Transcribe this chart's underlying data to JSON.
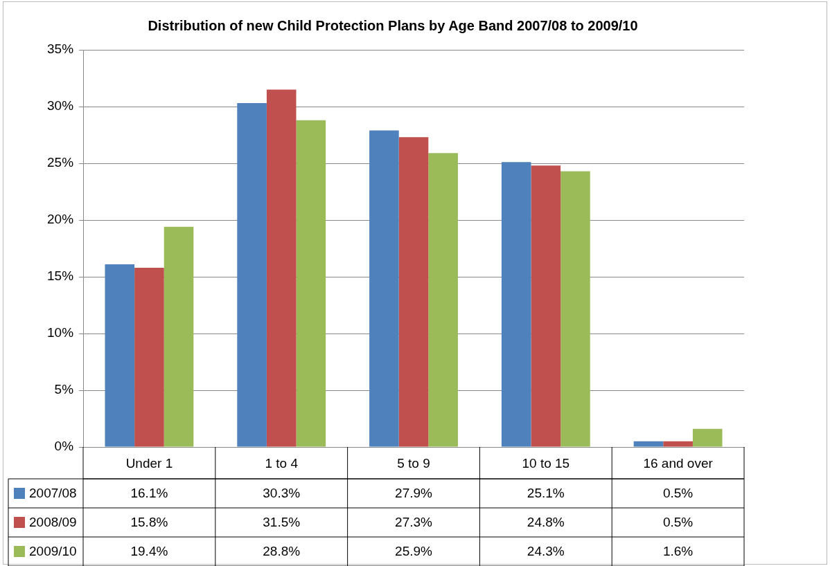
{
  "chart_data": {
    "type": "bar",
    "title": "Distribution of new Child Protection Plans by Age Band 2007/08 to 2009/10",
    "categories": [
      "Under 1",
      "1 to 4",
      "5 to 9",
      "10 to 15",
      "16 and over"
    ],
    "series": [
      {
        "name": "2007/08",
        "color": "#4f81bd",
        "values": [
          16.1,
          30.3,
          27.9,
          25.1,
          0.5
        ],
        "value_labels": [
          "16.1%",
          "30.3%",
          "27.9%",
          "25.1%",
          "0.5%"
        ]
      },
      {
        "name": "2008/09",
        "color": "#c0504d",
        "values": [
          15.8,
          31.5,
          27.3,
          24.8,
          0.5
        ],
        "value_labels": [
          "15.8%",
          "31.5%",
          "27.3%",
          "24.8%",
          "0.5%"
        ]
      },
      {
        "name": "2009/10",
        "color": "#9bbb59",
        "values": [
          19.4,
          28.8,
          25.9,
          24.3,
          1.6
        ],
        "value_labels": [
          "19.4%",
          "28.8%",
          "25.9%",
          "24.3%",
          "1.6%"
        ]
      }
    ],
    "ylim": [
      0,
      35
    ],
    "yticks": [
      {
        "value": 0,
        "label": "0%"
      },
      {
        "value": 5,
        "label": "5%"
      },
      {
        "value": 10,
        "label": "10%"
      },
      {
        "value": 15,
        "label": "15%"
      },
      {
        "value": 20,
        "label": "20%"
      },
      {
        "value": 25,
        "label": "25%"
      },
      {
        "value": 30,
        "label": "30%"
      },
      {
        "value": 35,
        "label": "35%"
      }
    ],
    "grid": "y",
    "legend": "bottom"
  }
}
